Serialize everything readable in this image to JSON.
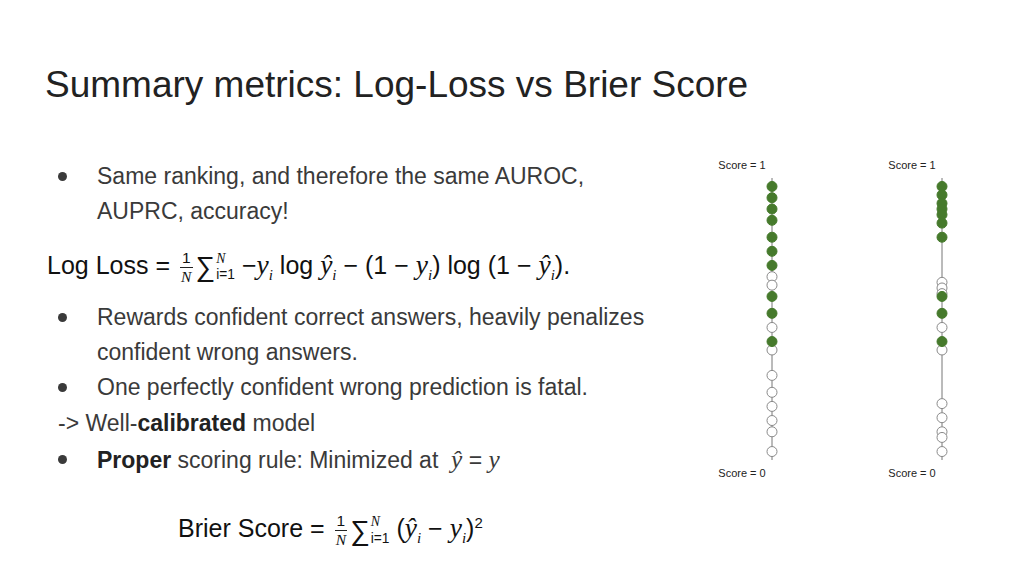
{
  "title": "Summary metrics: Log-Loss vs Brier Score",
  "content": [
    {
      "kind": "bullet",
      "tokens": [
        "Same ranking, and therefore the same AUROC, AUPRC, accuracy!"
      ]
    },
    {
      "kind": "formula",
      "tokens": [
        "Log Loss = ",
        {
          "frac": [
            "1",
            "N"
          ]
        },
        {
          "sum": {
            "symbol": "∑",
            "sub": "i=1",
            "sup": "N"
          }
        },
        " −",
        {
          "var": "y",
          "sub": "i"
        },
        " log ",
        {
          "var": "ŷ",
          "sub": "i"
        },
        " − (1 − ",
        {
          "var": "y",
          "sub": "i"
        },
        ") log (1 − ",
        {
          "var": "ŷ",
          "sub": "i"
        },
        ")."
      ]
    },
    {
      "kind": "bullet",
      "tokens": [
        "Rewards confident correct answers, heavily penalizes confident wrong answers."
      ]
    },
    {
      "kind": "bullet",
      "tokens": [
        "One perfectly confident wrong prediction is fatal."
      ]
    },
    {
      "kind": "line",
      "tokens": [
        "-> Well-",
        {
          "b": "calibrated"
        },
        " model"
      ]
    },
    {
      "kind": "bullet",
      "tokens": [
        {
          "b": "Proper"
        },
        " scoring rule: Minimized at  ",
        {
          "var": "ŷ"
        },
        " = ",
        {
          "var": "y"
        }
      ]
    },
    {
      "kind": "formula",
      "tokens": [
        "Brier Score = ",
        {
          "frac": [
            "1",
            "N"
          ]
        },
        {
          "sum": {
            "symbol": "∑",
            "sub": "i=1",
            "sup": "N"
          }
        },
        " (",
        {
          "var": "ŷ",
          "sub": "i"
        },
        " − ",
        {
          "var": "y",
          "sub": "i"
        },
        ")",
        {
          "sup": "2"
        }
      ]
    }
  ],
  "chart_data": [
    {
      "type": "scatter",
      "ylim": [
        0,
        1
      ],
      "yticks": [
        {
          "value": 0,
          "label": "Score = 0"
        },
        {
          "value": 1,
          "label": "Score = 1"
        }
      ],
      "series": [
        {
          "color": "#ffffff",
          "marker": "circle",
          "values": [
            0.65,
            0.62,
            0.47,
            0.39,
            0.3,
            0.24,
            0.19,
            0.14,
            0.1,
            0.03
          ]
        },
        {
          "color": "#467a2c",
          "marker": "circle",
          "values": [
            0.97,
            0.93,
            0.89,
            0.85,
            0.79,
            0.74,
            0.69,
            0.58,
            0.52,
            0.42
          ]
        }
      ]
    },
    {
      "type": "scatter",
      "ylim": [
        0,
        1
      ],
      "yticks": [
        {
          "value": 0,
          "label": "Score = 0"
        },
        {
          "value": 1,
          "label": "Score = 1"
        }
      ],
      "series": [
        {
          "color": "#ffffff",
          "marker": "circle",
          "values": [
            0.63,
            0.61,
            0.59,
            0.47,
            0.39,
            0.2,
            0.15,
            0.1,
            0.08,
            0.03
          ]
        },
        {
          "color": "#467a2c",
          "marker": "circle",
          "values": [
            0.97,
            0.94,
            0.91,
            0.89,
            0.87,
            0.84,
            0.79,
            0.58,
            0.52,
            0.42
          ]
        }
      ]
    }
  ]
}
